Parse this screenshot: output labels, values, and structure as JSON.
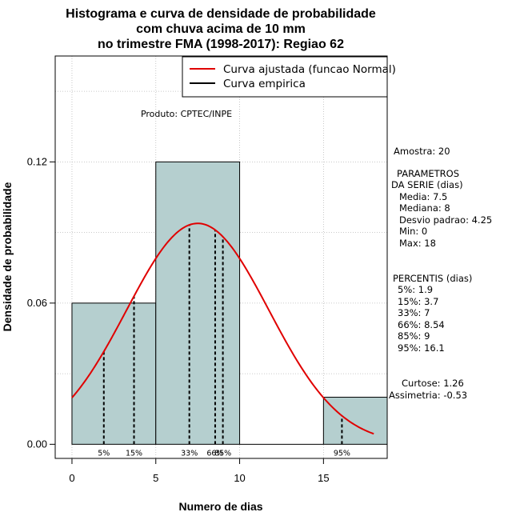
{
  "chart_data": {
    "type": "bar",
    "title_lines": [
      "Histograma e curva de densidade de probabilidade",
      "com chuva acima de 10 mm",
      "no trimestre FMA (1998-2017): Regiao 62"
    ],
    "xlabel": "Numero de dias",
    "ylabel": "Densidade de probabilidade",
    "xlim": [
      -1,
      18.8
    ],
    "ylim": [
      -0.006,
      0.165
    ],
    "xticks": [
      0,
      5,
      10,
      15
    ],
    "yticks": [
      0.0,
      0.06,
      0.12
    ],
    "ytick_labels": [
      "0.00",
      "0.06",
      "0.12"
    ],
    "grid": true,
    "bins": [
      {
        "start": 0,
        "end": 5,
        "density": 0.06
      },
      {
        "start": 5,
        "end": 10,
        "density": 0.12
      },
      {
        "start": 10,
        "end": 15,
        "density": 0.0
      },
      {
        "start": 15,
        "end": 19,
        "density": 0.02
      }
    ],
    "bar_color": "#b5cfcf",
    "series": [
      {
        "name": "Curva ajustada (funcao Normal)",
        "color": "#e00000",
        "type": "normal",
        "mean": 7.5,
        "sd": 4.25,
        "x_range": [
          0,
          18
        ]
      },
      {
        "name": "Curva empirica",
        "color": "#000000"
      }
    ],
    "percentiles": [
      {
        "label": "5%",
        "x": 1.9
      },
      {
        "label": "15%",
        "x": 3.7
      },
      {
        "label": "33%",
        "x": 7.0
      },
      {
        "label": "66%",
        "x": 8.54
      },
      {
        "label": "85%",
        "x": 9.0
      },
      {
        "label": "95%",
        "x": 16.1
      }
    ],
    "annotations": {
      "product": "Produto: CPTEC/INPE",
      "sample": "Amostra: 20",
      "params_title_1": "PARAMETROS",
      "params_title_2": "DA SERIE (dias)",
      "params": [
        "Media: 7.5",
        "Mediana: 8",
        "Desvio padrao: 4.25",
        "Min: 0",
        "Max: 18"
      ],
      "percentis_title": "PERCENTIS (dias)",
      "percentis": [
        "5%: 1.9",
        "15%: 3.7",
        "33%: 7",
        "66%: 8.54",
        "85%: 9",
        "95%: 16.1"
      ],
      "curtose": "Curtose: 1.26",
      "assimetria": "Assimetria: -0.53"
    }
  }
}
